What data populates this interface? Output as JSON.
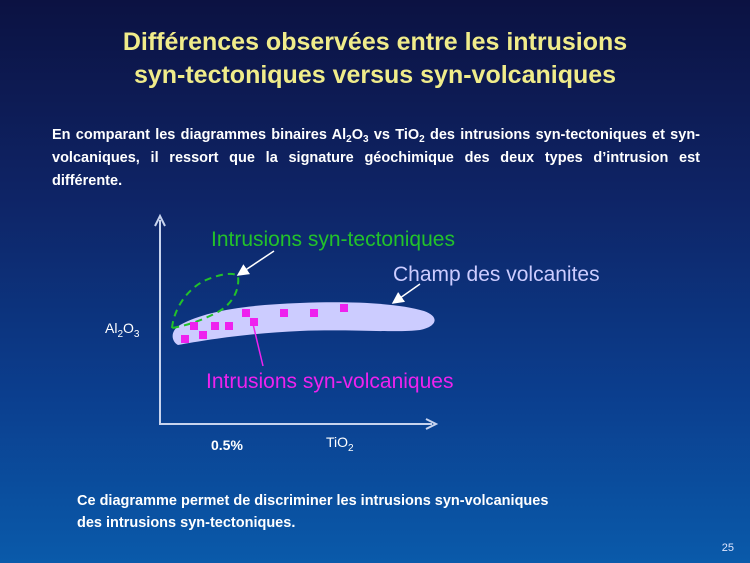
{
  "slide": {
    "title_line1": "Différences observées entre les intrusions",
    "title_line2": "syn-tectoniques versus syn-volcaniques",
    "intro": {
      "t1": "En comparant les diagrammes binaires Al",
      "s1": "2",
      "t2": "O",
      "s2": "3",
      "t3": " vs TiO",
      "s3": "2",
      "t4": " des intrusions syn-tectoniques et syn-volcaniques, il ressort que la signature géochimique des deux types d’intrusion est différente."
    },
    "conclusion_line1": "Ce diagramme permet de discriminer les intrusions syn-volcaniques",
    "conclusion_line2": "des intrusions syn-tectoniques.",
    "slide_number": "25"
  },
  "diagram": {
    "y_axis": {
      "base": "Al",
      "sub1": "2",
      "mid": "O",
      "sub2": "3"
    },
    "x_axis": {
      "base": "TiO",
      "sub": "2"
    },
    "x_tick": "0.5%",
    "labels": {
      "syn_tectonic": "Intrusions syn-tectoniques",
      "volcanic_field": "Champ des volcanites",
      "syn_volcanic": "Intrusions syn-volcaniques"
    },
    "colors": {
      "syn_tectonic": "#22c22a",
      "volcanic_field": "#ccccff",
      "syn_volcanic": "#ee22ee",
      "axes": "#c8d4ee"
    },
    "syn_volcanic_sample_count": 11
  }
}
